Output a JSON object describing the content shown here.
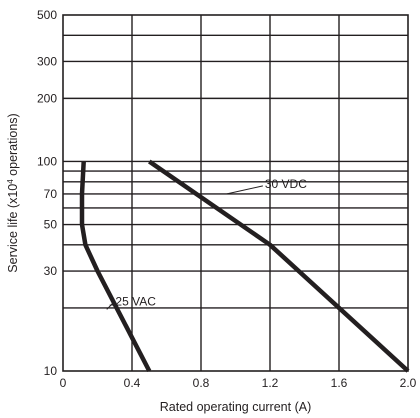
{
  "chart_data": {
    "type": "line",
    "title": "",
    "xlabel": "Rated operating current (A)",
    "ylabel": "Service life (x10",
    "ylabel_superscript": "4",
    "ylabel_suffix": " operations)",
    "y_scale": "log",
    "xlim": [
      0,
      2.0
    ],
    "ylim": [
      10,
      500
    ],
    "x_ticks": [
      0,
      0.4,
      0.8,
      1.2,
      1.6,
      2.0
    ],
    "x_tick_labels": [
      "0",
      "0.4",
      "0.8",
      "1.2",
      "1.6",
      "2.0"
    ],
    "x_gridlines": [
      0.4,
      0.8,
      1.2,
      1.6
    ],
    "y_ticks": [
      10,
      30,
      50,
      70,
      100,
      200,
      300,
      500
    ],
    "y_tick_labels": [
      "10",
      "30",
      "50",
      "70",
      "100",
      "200",
      "300",
      "500"
    ],
    "y_gridlines": [
      20,
      30,
      40,
      50,
      60,
      70,
      80,
      90,
      100,
      200,
      300,
      400
    ],
    "grid": true,
    "series": [
      {
        "name": "30 VDC",
        "x": [
          0.5,
          1.2,
          2.0
        ],
        "y": [
          100,
          40,
          10
        ]
      },
      {
        "name": "125 VAC",
        "x": [
          0.12,
          0.11,
          0.11,
          0.13,
          0.2,
          0.5
        ],
        "y": [
          100,
          70,
          50,
          40,
          30,
          10
        ]
      }
    ],
    "annotations": [
      {
        "text": "30 VDC",
        "series": "30 VDC",
        "x": 0.95,
        "y": 70
      },
      {
        "text": "125 VAC",
        "series": "125 VAC",
        "x": 0.3,
        "y": 21.5
      }
    ]
  }
}
